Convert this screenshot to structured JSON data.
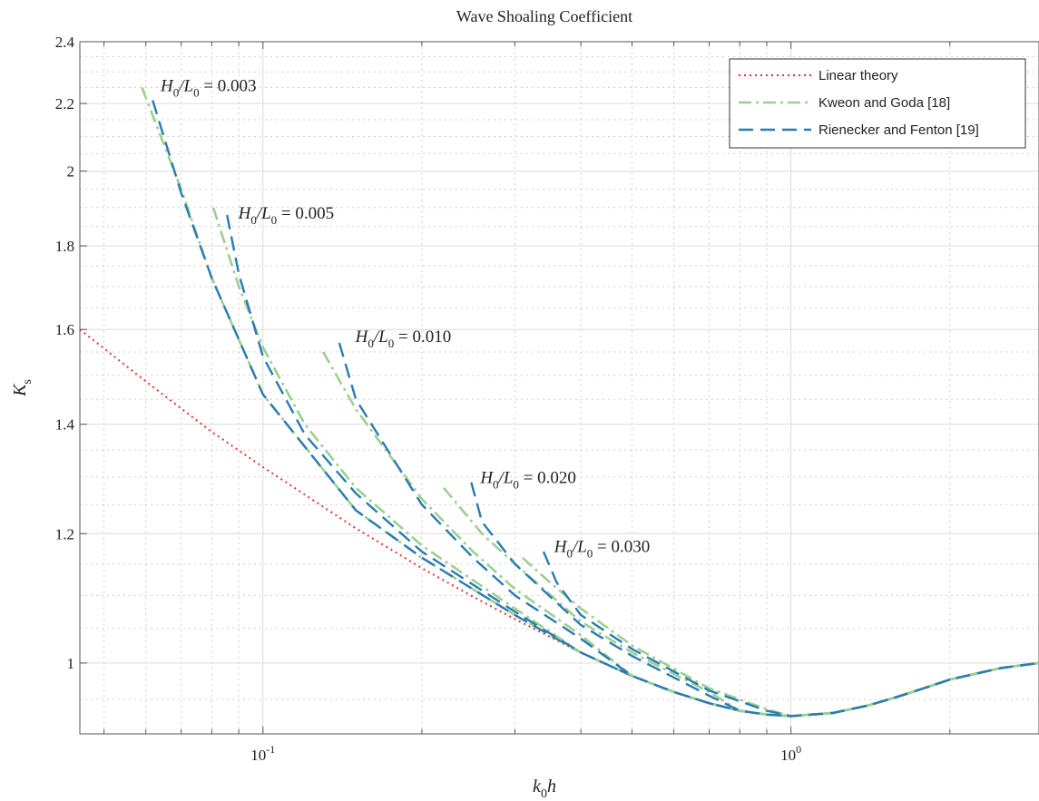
{
  "chart_data": {
    "type": "line",
    "title": "Wave Shoaling Coefficient",
    "xlabel": {
      "base": "k",
      "sub": "0",
      "rest": "h"
    },
    "ylabel": {
      "base": "K",
      "sub": "s"
    },
    "x_scale": "log",
    "y_scale": "log",
    "xlim": [
      0.045,
      2.95
    ],
    "ylim": [
      0.905,
      2.4
    ],
    "x_ticks": [
      {
        "value": 0.1,
        "base": "10",
        "exp": "-1"
      },
      {
        "value": 1,
        "base": "10",
        "exp": "0"
      }
    ],
    "y_ticks": [
      {
        "value": 1,
        "label": "1"
      },
      {
        "value": 1.2,
        "label": "1.2"
      },
      {
        "value": 1.4,
        "label": "1.4"
      },
      {
        "value": 1.6,
        "label": "1.6"
      },
      {
        "value": 1.8,
        "label": "1.8"
      },
      {
        "value": 2,
        "label": "2"
      },
      {
        "value": 2.2,
        "label": "2.2"
      },
      {
        "value": 2.4,
        "label": "2.4"
      }
    ],
    "grid": true,
    "minor_grid": true,
    "legend_position": "top-right",
    "legend": [
      {
        "label": "Linear theory",
        "style": "dotted",
        "color": "#e8312a"
      },
      {
        "label": "Kweon and Goda [18]",
        "style": "dashdot",
        "color": "#9bd08f"
      },
      {
        "label": "Rienecker and Fenton [19]",
        "style": "dashed",
        "color": "#2b7bb0"
      }
    ],
    "annotations": [
      {
        "base": "H",
        "sub1": "0",
        "mid": "/L",
        "sub2": "0",
        "value": " = 0.003",
        "x": 0.062,
        "y": 2.25
      },
      {
        "base": "H",
        "sub1": "0",
        "mid": "/L",
        "sub2": "0",
        "value": " = 0.005",
        "x": 0.087,
        "y": 1.88
      },
      {
        "base": "H",
        "sub1": "0",
        "mid": "/L",
        "sub2": "0",
        "value": " = 0.010",
        "x": 0.145,
        "y": 1.58
      },
      {
        "base": "H",
        "sub1": "0",
        "mid": "/L",
        "sub2": "0",
        "value": " = 0.020",
        "x": 0.25,
        "y": 1.295
      },
      {
        "base": "H",
        "sub1": "0",
        "mid": "/L",
        "sub2": "0",
        "value": " = 0.030",
        "x": 0.345,
        "y": 1.175
      }
    ],
    "linear_theory": {
      "x": [
        0.045,
        0.06,
        0.08,
        0.1,
        0.15,
        0.2,
        0.25,
        0.3,
        0.4,
        0.5,
        0.6,
        0.7,
        0.8,
        0.9,
        1.0,
        1.2,
        1.4,
        1.6,
        1.8,
        2.0,
        2.5,
        2.95
      ],
      "y": [
        1.6,
        1.487,
        1.385,
        1.318,
        1.209,
        1.143,
        1.098,
        1.064,
        1.015,
        0.982,
        0.96,
        0.945,
        0.935,
        0.93,
        0.928,
        0.932,
        0.942,
        0.954,
        0.966,
        0.977,
        0.993,
        1.0
      ]
    },
    "wave_series": [
      {
        "steepness": "0.003",
        "kweon_goda": {
          "x": [
            0.059,
            0.07,
            0.08,
            0.1,
            0.15,
            0.2,
            0.3
          ],
          "y": [
            2.25,
            1.95,
            1.72,
            1.46,
            1.24,
            1.16,
            1.07
          ]
        },
        "rienecker_fenton": {
          "x": [
            0.0618,
            0.07,
            0.08,
            0.1,
            0.15,
            0.2,
            0.3
          ],
          "y": [
            2.21,
            1.94,
            1.72,
            1.46,
            1.24,
            1.16,
            1.07
          ]
        }
      },
      {
        "steepness": "0.005",
        "kweon_goda": {
          "x": [
            0.0805,
            0.09,
            0.1,
            0.12,
            0.15,
            0.2,
            0.3
          ],
          "y": [
            1.9,
            1.7,
            1.56,
            1.4,
            1.28,
            1.18,
            1.08
          ]
        },
        "rienecker_fenton": {
          "x": [
            0.0855,
            0.09,
            0.1,
            0.12,
            0.15,
            0.2,
            0.3
          ],
          "y": [
            1.88,
            1.73,
            1.54,
            1.38,
            1.27,
            1.17,
            1.075
          ]
        }
      },
      {
        "steepness": "0.010",
        "kweon_goda": {
          "x": [
            0.13,
            0.15,
            0.2,
            0.25,
            0.3,
            0.4
          ],
          "y": [
            1.55,
            1.43,
            1.26,
            1.17,
            1.11,
            1.04
          ]
        },
        "rienecker_fenton": {
          "x": [
            0.1395,
            0.15,
            0.2,
            0.25,
            0.3,
            0.4
          ],
          "y": [
            1.57,
            1.45,
            1.25,
            1.16,
            1.1,
            1.035
          ]
        }
      },
      {
        "steepness": "0.020",
        "kweon_goda": {
          "x": [
            0.22,
            0.26,
            0.3,
            0.4,
            0.5,
            0.7
          ],
          "y": [
            1.28,
            1.2,
            1.15,
            1.06,
            1.015,
            0.96
          ]
        },
        "rienecker_fenton": {
          "x": [
            0.248,
            0.26,
            0.3,
            0.4,
            0.5,
            0.7
          ],
          "y": [
            1.29,
            1.22,
            1.15,
            1.055,
            1.01,
            0.955
          ]
        }
      },
      {
        "steepness": "0.030",
        "kweon_goda": {
          "x": [
            0.31,
            0.35,
            0.4,
            0.5,
            0.7,
            0.9
          ],
          "y": [
            1.16,
            1.12,
            1.08,
            1.025,
            0.965,
            0.937
          ]
        },
        "rienecker_fenton": {
          "x": [
            0.34,
            0.36,
            0.4,
            0.5,
            0.7,
            0.9
          ],
          "y": [
            1.17,
            1.12,
            1.07,
            1.02,
            0.962,
            0.935
          ]
        }
      }
    ]
  }
}
